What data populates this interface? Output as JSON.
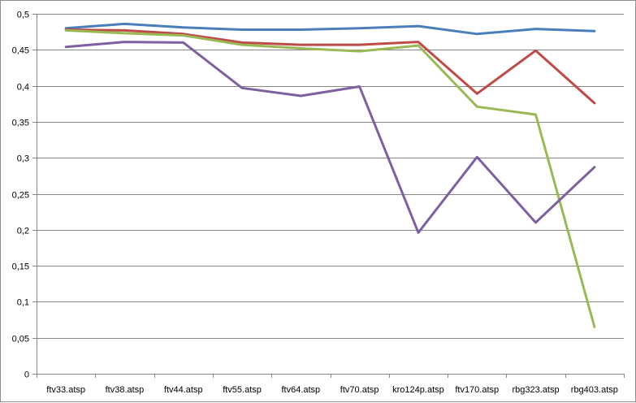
{
  "chart_data": {
    "type": "line",
    "title": "",
    "xlabel": "",
    "ylabel": "",
    "categories": [
      "ftv33.atsp",
      "ftv38.atsp",
      "ftv44.atsp",
      "ftv55.atsp",
      "ftv64.atsp",
      "ftv70.atsp",
      "kro124p.atsp",
      "ftv170.atsp",
      "rbg323.atsp",
      "rbg403.atsp"
    ],
    "ylim": [
      0,
      0.5
    ],
    "yticks": [
      0,
      0.05,
      0.1,
      0.15,
      0.2,
      0.25,
      0.3,
      0.35,
      0.4,
      0.45,
      0.5
    ],
    "ytick_labels": [
      "0",
      "0,05",
      "0,1",
      "0,15",
      "0,2",
      "0,25",
      "0,3",
      "0,35",
      "0,4",
      "0,45",
      "0,5"
    ],
    "grid": true,
    "legend": "none",
    "series": [
      {
        "color": "#4a7ebb",
        "values": [
          0.48,
          0.486,
          0.481,
          0.478,
          0.478,
          0.48,
          0.483,
          0.472,
          0.479,
          0.476
        ]
      },
      {
        "color": "#be4b48",
        "values": [
          0.478,
          0.477,
          0.472,
          0.46,
          0.457,
          0.457,
          0.461,
          0.389,
          0.449,
          0.376
        ]
      },
      {
        "color": "#98b954",
        "values": [
          0.477,
          0.473,
          0.47,
          0.457,
          0.452,
          0.448,
          0.456,
          0.371,
          0.36,
          0.065
        ]
      },
      {
        "color": "#7d60a0",
        "values": [
          0.454,
          0.461,
          0.46,
          0.397,
          0.386,
          0.399,
          0.196,
          0.301,
          0.21,
          0.287
        ]
      }
    ]
  }
}
